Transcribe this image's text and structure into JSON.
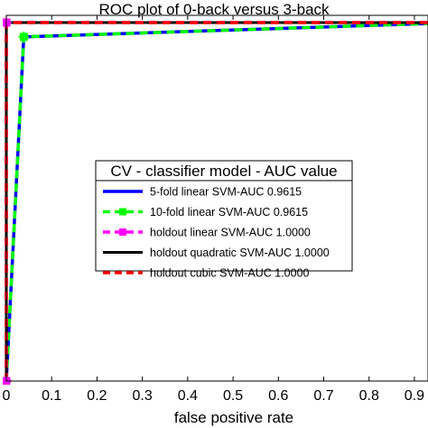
{
  "chart_data": {
    "type": "line",
    "title": "ROC plot of 0-back versus 3-back",
    "xlabel": "false positive rate",
    "ylabel": "",
    "xlim": [
      0,
      0.93
    ],
    "ylim": [
      0,
      1.02
    ],
    "x_ticks": [
      "0",
      "0.1",
      "0.2",
      "0.3",
      "0.4",
      "0.5",
      "0.6",
      "0.7",
      "0.8",
      "0.9"
    ],
    "grid": false,
    "legend": {
      "title": "CV - classifier model - AUC value",
      "placement": "center-right"
    },
    "series": [
      {
        "name": "5-fold linear SVM-AUC 0.9615",
        "color": "#0000ff",
        "style": "solid",
        "marker": "none",
        "x": [
          0,
          0.0385,
          1.0
        ],
        "y": [
          0,
          0.96,
          1.0
        ]
      },
      {
        "name": "10-fold linear SVM-AUC 0.9615",
        "color": "#00ff00",
        "style": "dashed",
        "marker": "square",
        "x": [
          0,
          0.0385,
          1.0
        ],
        "y": [
          0,
          0.96,
          1.0
        ]
      },
      {
        "name": "holdout linear SVM-AUC 1.0000",
        "color": "#ff00ff",
        "style": "dashed",
        "marker": "square",
        "x": [
          0,
          0,
          1.0
        ],
        "y": [
          0,
          1.0,
          1.0
        ]
      },
      {
        "name": "holdout quadratic SVM-AUC 1.0000",
        "color": "#000000",
        "style": "solid",
        "marker": "none",
        "x": [
          0,
          0,
          1.0
        ],
        "y": [
          0,
          1.0,
          1.0
        ]
      },
      {
        "name": "holdout cubic SVM-AUC 1.0000",
        "color": "#ff0000",
        "style": "dashed",
        "marker": "none",
        "x": [
          0,
          0,
          1.0
        ],
        "y": [
          0,
          1.0,
          1.0
        ]
      }
    ]
  }
}
